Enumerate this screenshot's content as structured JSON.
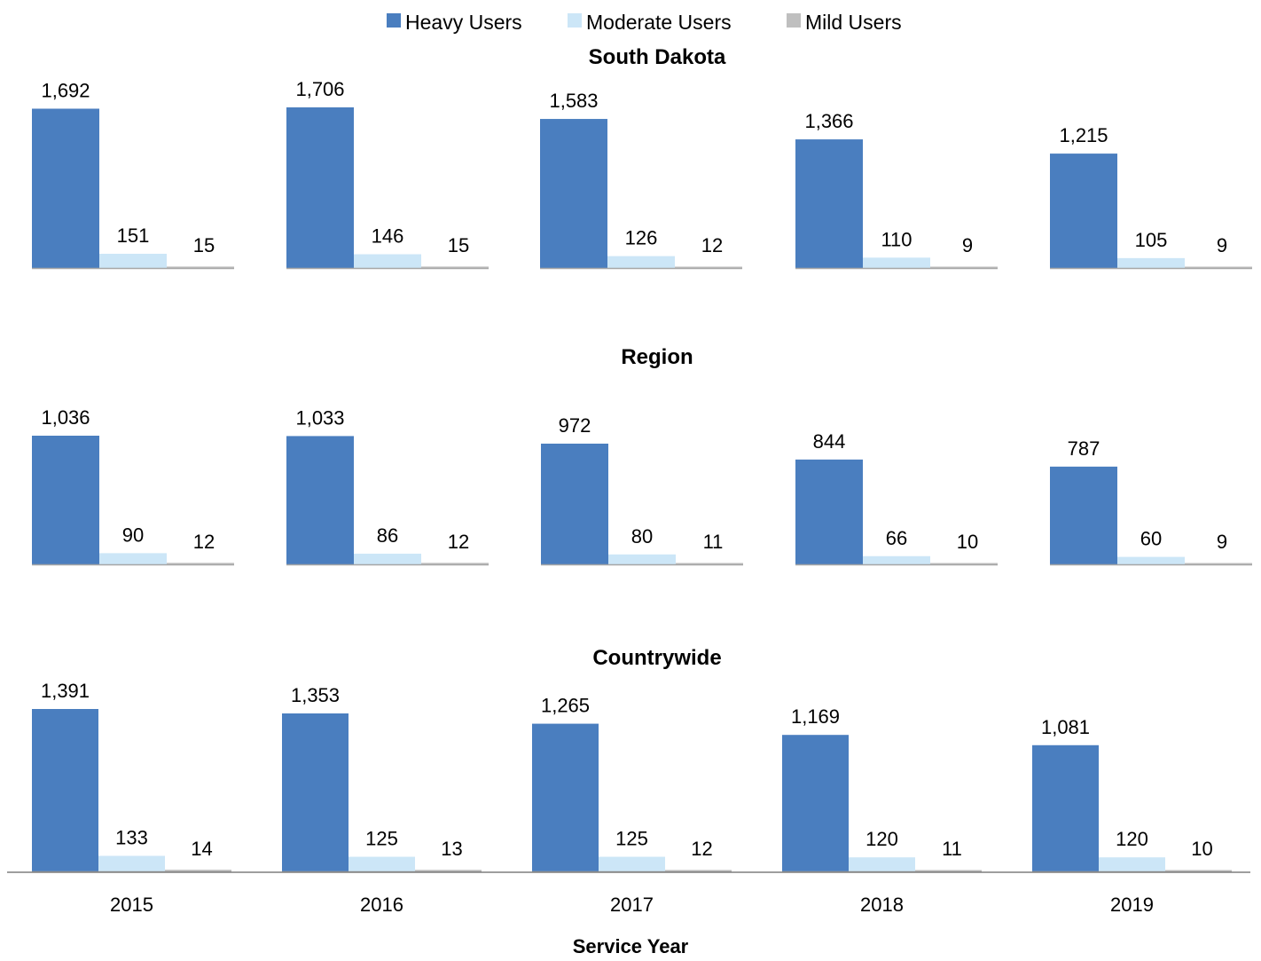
{
  "chart_data": {
    "type": "bar",
    "layout": "small-multiples",
    "categories": [
      "2015",
      "2016",
      "2017",
      "2018",
      "2019"
    ],
    "legend": {
      "position": "top-center",
      "items": [
        {
          "name": "Heavy Users",
          "color": "#4a7ebf"
        },
        {
          "name": "Moderate Users",
          "color": "#cce6f7"
        },
        {
          "name": "Mild Users",
          "color": "#bfbfbf"
        }
      ]
    },
    "xlabel": "Service Year",
    "grid": false,
    "panels": [
      {
        "title": "South Dakota",
        "ylim": [
          0,
          1706
        ],
        "series": [
          {
            "name": "Heavy Users",
            "values": [
              1692,
              1706,
              1583,
              1366,
              1215
            ],
            "labels": [
              "1,692",
              "1,706",
              "1,583",
              "1,366",
              "1,215"
            ]
          },
          {
            "name": "Moderate Users",
            "values": [
              151,
              146,
              126,
              110,
              105
            ],
            "labels": [
              "151",
              "146",
              "126",
              "110",
              "105"
            ]
          },
          {
            "name": "Mild Users",
            "values": [
              15,
              15,
              12,
              9,
              9
            ],
            "labels": [
              "15",
              "15",
              "12",
              "9",
              "9"
            ]
          }
        ]
      },
      {
        "title": "Region",
        "ylim": [
          0,
          1036
        ],
        "series": [
          {
            "name": "Heavy Users",
            "values": [
              1036,
              1033,
              972,
              844,
              787
            ],
            "labels": [
              "1,036",
              "1,033",
              "972",
              "844",
              "787"
            ]
          },
          {
            "name": "Moderate Users",
            "values": [
              90,
              86,
              80,
              66,
              60
            ],
            "labels": [
              "90",
              "86",
              "80",
              "66",
              "60"
            ]
          },
          {
            "name": "Mild Users",
            "values": [
              12,
              12,
              11,
              10,
              9
            ],
            "labels": [
              "12",
              "12",
              "11",
              "10",
              "9"
            ]
          }
        ]
      },
      {
        "title": "Countrywide",
        "ylim": [
          0,
          1391
        ],
        "series": [
          {
            "name": "Heavy Users",
            "values": [
              1391,
              1353,
              1265,
              1169,
              1081
            ],
            "labels": [
              "1,391",
              "1,353",
              "1,265",
              "1,169",
              "1,081"
            ]
          },
          {
            "name": "Moderate Users",
            "values": [
              133,
              125,
              125,
              120,
              120
            ],
            "labels": [
              "133",
              "125",
              "125",
              "120",
              "120"
            ]
          },
          {
            "name": "Mild Users",
            "values": [
              14,
              13,
              12,
              11,
              10
            ],
            "labels": [
              "14",
              "13",
              "12",
              "11",
              "10"
            ]
          }
        ]
      }
    ]
  }
}
